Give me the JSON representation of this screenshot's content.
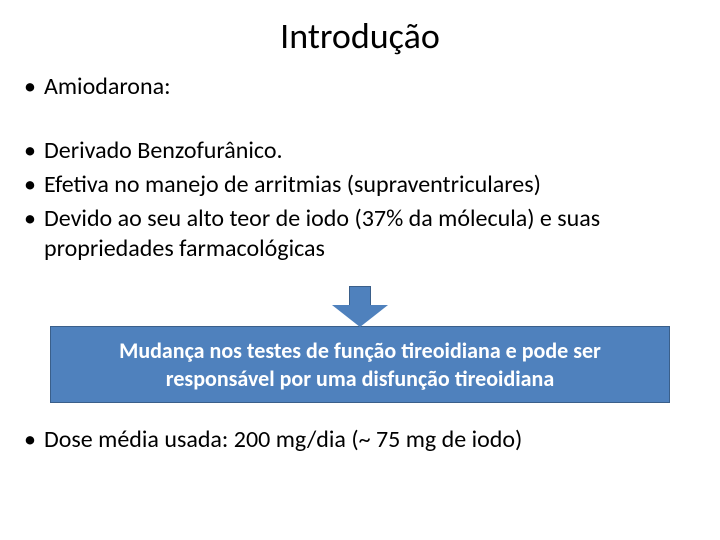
{
  "title": "Introdução",
  "bullets_top": [
    "Amiodarona:"
  ],
  "bullets_mid": [
    "Derivado Benzofurânico.",
    "Efetiva no manejo de arritmias (supraventriculares)",
    "Devido ao seu alto teor de iodo (37% da mólecula) e suas propriedades farmacológicas"
  ],
  "callout": "Mudança nos testes de função tireoidiana e pode ser responsável por uma disfunção tireoidiana",
  "bullets_bottom": [
    "Dose média usada: 200 mg/dia  (~ 75 mg de iodo)"
  ],
  "colors": {
    "callout_bg": "#4f81bd",
    "callout_border": "#3a5f8a",
    "callout_text": "#ffffff",
    "body_text": "#000000",
    "background": "#ffffff"
  },
  "typography": {
    "title_fontsize": 36,
    "bullet_fontsize": 24,
    "callout_fontsize": 22,
    "callout_weight": "bold"
  },
  "layout": {
    "slide_width": 720,
    "slide_height": 540,
    "callout_width": 620,
    "arrow_width": 56,
    "arrow_height": 42
  }
}
